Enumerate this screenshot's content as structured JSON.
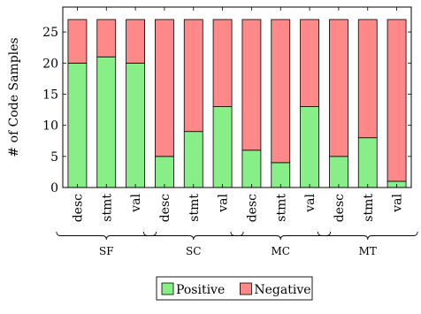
{
  "chart_data": {
    "type": "bar",
    "stacked": true,
    "categories": [
      "desc",
      "stmt",
      "val",
      "desc",
      "stmt",
      "val",
      "desc",
      "stmt",
      "val",
      "desc",
      "stmt",
      "val"
    ],
    "groups": [
      {
        "label": "SF",
        "members": [
          0,
          1,
          2
        ]
      },
      {
        "label": "SC",
        "members": [
          3,
          4,
          5
        ]
      },
      {
        "label": "MC",
        "members": [
          6,
          7,
          8
        ]
      },
      {
        "label": "MT",
        "members": [
          9,
          10,
          11
        ]
      }
    ],
    "series": [
      {
        "name": "Positive",
        "color": "#88ee88",
        "values": [
          20,
          21,
          20,
          5,
          9,
          13,
          6,
          4,
          13,
          5,
          8,
          1
        ]
      },
      {
        "name": "Negative",
        "color": "#ff8888",
        "values": [
          7,
          6,
          7,
          22,
          18,
          14,
          21,
          23,
          14,
          22,
          19,
          26
        ]
      }
    ],
    "ylabel": "# of Code Samples",
    "xlabel": "",
    "ylim": [
      0,
      29
    ],
    "yticks": [
      0,
      5,
      10,
      15,
      20,
      25
    ],
    "grid": false,
    "legend": "bottom"
  }
}
